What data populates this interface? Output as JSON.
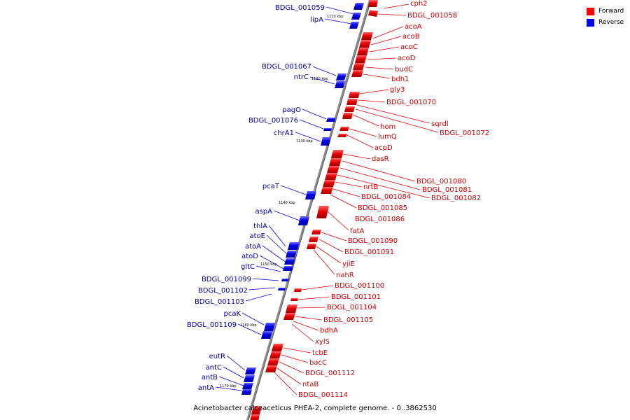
{
  "title": "Acinetobacter calcoaceticus PHEA-2, complete genome. - 0..3862530",
  "colors": {
    "forward": "#e60000",
    "reverse": "#0000e6",
    "backbone": "#8c8c8c"
  },
  "legend": [
    {
      "label": "Forward",
      "color": "#ff0000"
    },
    {
      "label": "Reverse",
      "color": "#0000ff"
    }
  ],
  "ticks": [
    "1110 kbp",
    "1120 kbp",
    "1130 kbp",
    "1140 kbp",
    "1150 kbp",
    "1160 kbp",
    "1170 kbp"
  ],
  "reverse_genes": [
    "BDGL_001059",
    "lipA",
    "BDGL_001067",
    "ntrC",
    "pagO",
    "BDGL_001076",
    "chrA1",
    "pcaT",
    "aspA",
    "thlA",
    "atoE",
    "atoA",
    "atoD",
    "gltC",
    "BDGL_001099",
    "BDGL_001102",
    "BDGL_001103",
    "pcaK",
    "BDGL_001109",
    "eutR",
    "antC",
    "antB",
    "antA"
  ],
  "forward_genes": [
    "cph2",
    "BDGL_001058",
    "acoA",
    "acoB",
    "acoC",
    "acoD",
    "budC",
    "bdh1",
    "gly3",
    "BDGL_001070",
    "sqrdl",
    "BDGL_001072",
    "hom",
    "lumQ",
    "acpD",
    "dasR",
    "BDGL_001080",
    "nrtB",
    "BDGL_001081",
    "BDGL_001082",
    "BDGL_001084",
    "BDGL_001085",
    "BDGL_001086",
    "fatA",
    "BDGL_001090",
    "BDGL_001091",
    "yjiE",
    "nahR",
    "BDGL_001100",
    "BDGL_001101",
    "BDGL_001104",
    "BDGL_001105",
    "bdhA",
    "xylS",
    "tcbE",
    "bacC",
    "BDGL_001112",
    "ntaB",
    "BDGL_001114"
  ]
}
